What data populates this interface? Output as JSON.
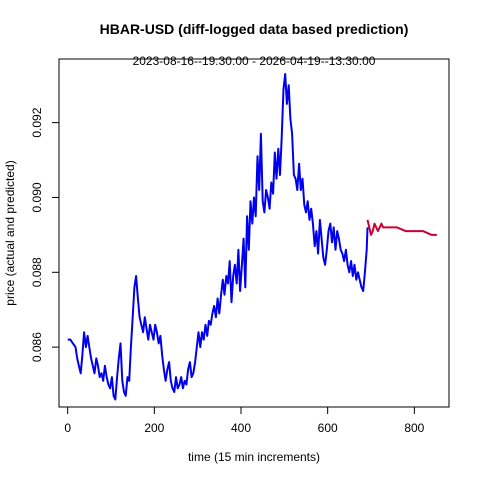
{
  "chart_data": {
    "type": "line",
    "title": "HBAR-USD (diff-logged data based prediction)",
    "subtitle": "2023-08-16--19:30:00  -  2026-04-19--13:30:00",
    "xlabel": "time (15 min increments)",
    "ylabel": "price (actual and predicted)",
    "xlim": [
      -20,
      880
    ],
    "ylim": [
      0.0844,
      0.0937
    ],
    "x_ticks": [
      0,
      200,
      400,
      600,
      800
    ],
    "y_ticks": [
      0.086,
      0.088,
      0.09,
      0.092
    ],
    "y_tick_labels": [
      "0.086",
      "0.088",
      "0.090",
      "0.092"
    ],
    "grid": false,
    "series": [
      {
        "color": "#0000ee",
        "points": [
          [
            0,
            0.0862
          ],
          [
            6,
            0.0862
          ],
          [
            12,
            0.0861
          ],
          [
            18,
            0.086
          ],
          [
            22,
            0.0857
          ],
          [
            26,
            0.0855
          ],
          [
            30,
            0.0853
          ],
          [
            34,
            0.0858
          ],
          [
            38,
            0.0864
          ],
          [
            42,
            0.086
          ],
          [
            46,
            0.0863
          ],
          [
            50,
            0.086
          ],
          [
            54,
            0.0857
          ],
          [
            58,
            0.0855
          ],
          [
            62,
            0.0853
          ],
          [
            66,
            0.0857
          ],
          [
            70,
            0.0855
          ],
          [
            74,
            0.0852
          ],
          [
            78,
            0.0853
          ],
          [
            82,
            0.0851
          ],
          [
            86,
            0.0855
          ],
          [
            90,
            0.0852
          ],
          [
            94,
            0.085
          ],
          [
            98,
            0.0849
          ],
          [
            102,
            0.0852
          ],
          [
            106,
            0.0847
          ],
          [
            110,
            0.0846
          ],
          [
            114,
            0.0852
          ],
          [
            118,
            0.0857
          ],
          [
            122,
            0.0861
          ],
          [
            126,
            0.0851
          ],
          [
            130,
            0.0848
          ],
          [
            134,
            0.0847
          ],
          [
            138,
            0.0852
          ],
          [
            142,
            0.0851
          ],
          [
            146,
            0.086
          ],
          [
            150,
            0.0868
          ],
          [
            154,
            0.0876
          ],
          [
            158,
            0.0879
          ],
          [
            162,
            0.0873
          ],
          [
            166,
            0.0868
          ],
          [
            170,
            0.0866
          ],
          [
            174,
            0.0864
          ],
          [
            178,
            0.0868
          ],
          [
            182,
            0.0865
          ],
          [
            186,
            0.0862
          ],
          [
            190,
            0.0866
          ],
          [
            194,
            0.0864
          ],
          [
            198,
            0.0862
          ],
          [
            202,
            0.0866
          ],
          [
            206,
            0.0864
          ],
          [
            210,
            0.0861
          ],
          [
            214,
            0.0863
          ],
          [
            218,
            0.0858
          ],
          [
            222,
            0.0854
          ],
          [
            226,
            0.0851
          ],
          [
            230,
            0.0854
          ],
          [
            234,
            0.0856
          ],
          [
            238,
            0.0851
          ],
          [
            242,
            0.0849
          ],
          [
            246,
            0.0848
          ],
          [
            250,
            0.0852
          ],
          [
            254,
            0.0849
          ],
          [
            258,
            0.085
          ],
          [
            262,
            0.0852
          ],
          [
            266,
            0.0849
          ],
          [
            270,
            0.0851
          ],
          [
            274,
            0.085
          ],
          [
            278,
            0.0854
          ],
          [
            282,
            0.0856
          ],
          [
            286,
            0.0852
          ],
          [
            290,
            0.0853
          ],
          [
            294,
            0.0856
          ],
          [
            298,
            0.086
          ],
          [
            302,
            0.0864
          ],
          [
            306,
            0.086
          ],
          [
            310,
            0.0864
          ],
          [
            314,
            0.0862
          ],
          [
            318,
            0.0866
          ],
          [
            322,
            0.0863
          ],
          [
            326,
            0.0867
          ],
          [
            330,
            0.0866
          ],
          [
            334,
            0.0869
          ],
          [
            338,
            0.0871
          ],
          [
            342,
            0.0868
          ],
          [
            346,
            0.0873
          ],
          [
            350,
            0.0869
          ],
          [
            354,
            0.0874
          ],
          [
            358,
            0.0878
          ],
          [
            362,
            0.0874
          ],
          [
            366,
            0.0879
          ],
          [
            370,
            0.0877
          ],
          [
            374,
            0.0883
          ],
          [
            378,
            0.0872
          ],
          [
            382,
            0.0879
          ],
          [
            386,
            0.0882
          ],
          [
            390,
            0.0877
          ],
          [
            394,
            0.0886
          ],
          [
            398,
            0.0875
          ],
          [
            402,
            0.0882
          ],
          [
            406,
            0.0889
          ],
          [
            410,
            0.0876
          ],
          [
            414,
            0.0895
          ],
          [
            418,
            0.0886
          ],
          [
            422,
            0.0899
          ],
          [
            426,
            0.0893
          ],
          [
            430,
            0.09
          ],
          [
            434,
            0.0895
          ],
          [
            438,
            0.0911
          ],
          [
            442,
            0.0902
          ],
          [
            446,
            0.0917
          ],
          [
            450,
            0.0899
          ],
          [
            454,
            0.0896
          ],
          [
            458,
            0.0902
          ],
          [
            462,
            0.09
          ],
          [
            466,
            0.0897
          ],
          [
            470,
            0.0904
          ],
          [
            474,
            0.0901
          ],
          [
            478,
            0.0912
          ],
          [
            482,
            0.0905
          ],
          [
            486,
            0.0913
          ],
          [
            490,
            0.0906
          ],
          [
            494,
            0.0916
          ],
          [
            498,
            0.0929
          ],
          [
            502,
            0.0933
          ],
          [
            506,
            0.0925
          ],
          [
            510,
            0.093
          ],
          [
            514,
            0.0921
          ],
          [
            518,
            0.0917
          ],
          [
            522,
            0.0906
          ],
          [
            526,
            0.0905
          ],
          [
            530,
            0.0902
          ],
          [
            534,
            0.0909
          ],
          [
            538,
            0.0902
          ],
          [
            542,
            0.0905
          ],
          [
            546,
            0.0898
          ],
          [
            550,
            0.0896
          ],
          [
            554,
            0.0899
          ],
          [
            558,
            0.0894
          ],
          [
            562,
            0.0897
          ],
          [
            566,
            0.0893
          ],
          [
            570,
            0.0887
          ],
          [
            574,
            0.0891
          ],
          [
            578,
            0.0885
          ],
          [
            582,
            0.0894
          ],
          [
            586,
            0.0889
          ],
          [
            590,
            0.0884
          ],
          [
            594,
            0.0882
          ],
          [
            598,
            0.0886
          ],
          [
            602,
            0.0891
          ],
          [
            606,
            0.0893
          ],
          [
            610,
            0.0888
          ],
          [
            614,
            0.0892
          ],
          [
            618,
            0.0886
          ],
          [
            622,
            0.0891
          ],
          [
            626,
            0.0889
          ],
          [
            630,
            0.0886
          ],
          [
            634,
            0.0885
          ],
          [
            638,
            0.0883
          ],
          [
            642,
            0.0886
          ],
          [
            646,
            0.0882
          ],
          [
            650,
            0.088
          ],
          [
            654,
            0.0883
          ],
          [
            658,
            0.0879
          ],
          [
            662,
            0.0882
          ],
          [
            666,
            0.0878
          ],
          [
            670,
            0.088
          ],
          [
            674,
            0.0878
          ],
          [
            678,
            0.0876
          ],
          [
            682,
            0.0875
          ],
          [
            686,
            0.088
          ],
          [
            690,
            0.0886
          ],
          [
            692,
            0.0892
          ]
        ]
      },
      {
        "color": "#cc0033",
        "points": [
          [
            692,
            0.0894
          ],
          [
            696,
            0.0892
          ],
          [
            700,
            0.089
          ],
          [
            704,
            0.0891
          ],
          [
            708,
            0.0893
          ],
          [
            712,
            0.0892
          ],
          [
            716,
            0.0891
          ],
          [
            720,
            0.0892
          ],
          [
            724,
            0.0893
          ],
          [
            728,
            0.0892
          ],
          [
            740,
            0.0892
          ],
          [
            760,
            0.0892
          ],
          [
            780,
            0.0891
          ],
          [
            800,
            0.0891
          ],
          [
            820,
            0.0891
          ],
          [
            840,
            0.089
          ],
          [
            852,
            0.089
          ]
        ]
      }
    ]
  }
}
